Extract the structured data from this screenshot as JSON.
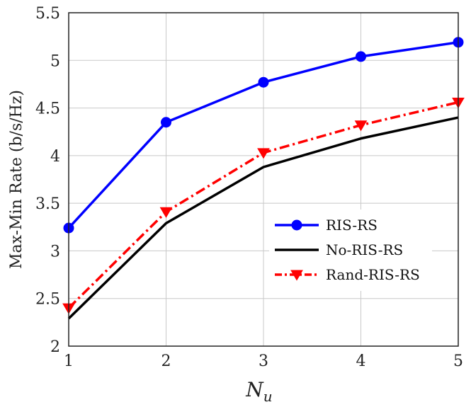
{
  "chart_data": {
    "type": "line",
    "xlabel": "N",
    "xlabel_sub": "u",
    "ylabel": "Max-Min Rate (b/s/Hz)",
    "x": [
      1,
      2,
      3,
      4,
      5
    ],
    "xlim": [
      1,
      5
    ],
    "ylim": [
      2,
      5.5
    ],
    "xticks": [
      "1",
      "2",
      "3",
      "4",
      "5"
    ],
    "yticks": [
      "2",
      "2.5",
      "3",
      "3.5",
      "4",
      "4.5",
      "5",
      "5.5"
    ],
    "grid": true,
    "legend_position": "center-right",
    "series": [
      {
        "name": "RIS-RS",
        "values": [
          3.24,
          4.35,
          4.77,
          5.04,
          5.19
        ],
        "color": "#0000ff",
        "marker": "circle",
        "dash": "solid"
      },
      {
        "name": "No-RIS-RS",
        "values": [
          2.29,
          3.29,
          3.88,
          4.18,
          4.4
        ],
        "color": "#000000",
        "marker": "none",
        "dash": "solid"
      },
      {
        "name": "Rand-RIS-RS",
        "values": [
          2.4,
          3.41,
          4.03,
          4.32,
          4.56
        ],
        "color": "#ff0000",
        "marker": "triangle-down",
        "dash": "dashdot"
      }
    ]
  }
}
